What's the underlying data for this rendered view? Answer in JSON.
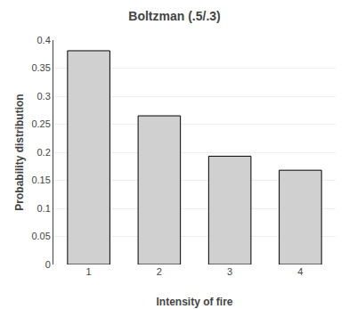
{
  "chart_data": {
    "type": "bar",
    "title": "Boltzman (.5/.3)",
    "xlabel": "Intensity of fire",
    "ylabel": "Probability distribution",
    "categories": [
      1,
      2,
      3,
      4
    ],
    "values": [
      0.381,
      0.265,
      0.193,
      0.168
    ],
    "color": "#d0d0d0",
    "ylim": [
      0,
      0.4
    ],
    "yticks": [
      0,
      0.05,
      0.1,
      0.15,
      0.2,
      0.25,
      0.3,
      0.35,
      0.4
    ],
    "grid": true
  }
}
